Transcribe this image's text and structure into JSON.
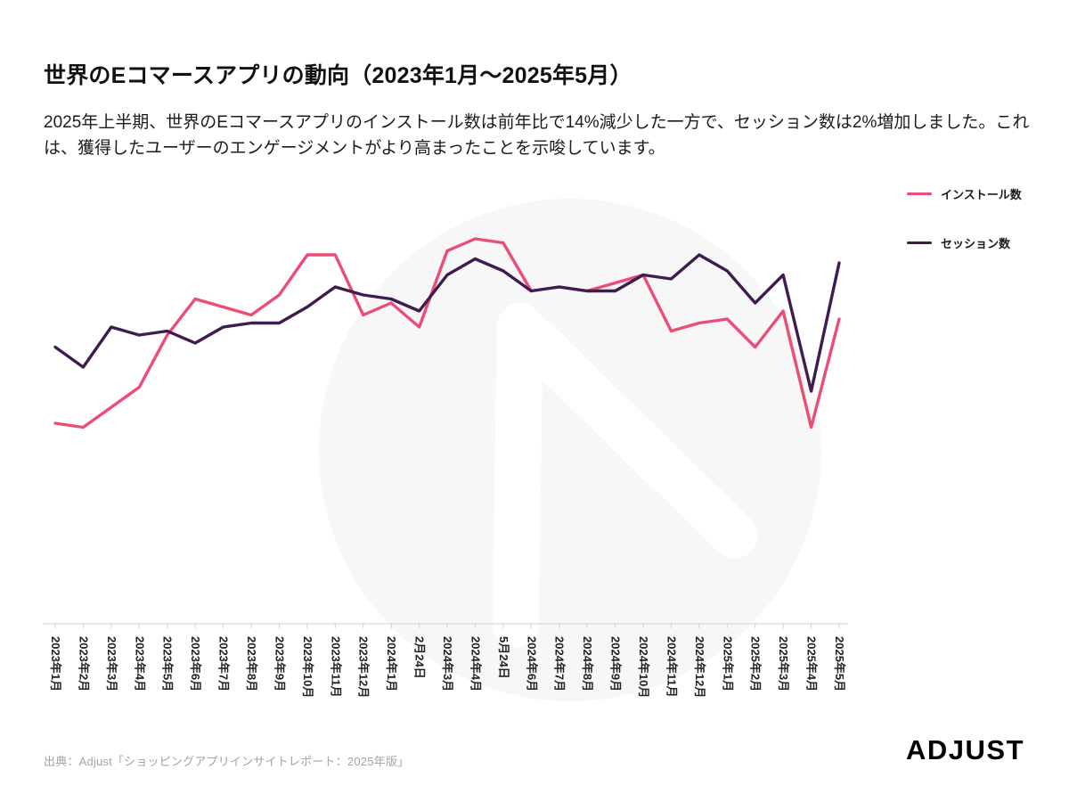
{
  "page": {
    "title": "世界のEコマースアプリの動向（2023年1月〜2025年5月）",
    "description": "2025年上半期、世界のEコマースアプリのインストール数は前年比で14%減少した一方で、セッション数は2%増加しました。これは、獲得したユーザーのエンゲージメントがより高まったことを示唆しています。",
    "source": "出典：Adjust「ショッピングアプリインサイトレポート：2025年版」",
    "brand_name": "ADJUST"
  },
  "colors": {
    "installs": "#ec4d77",
    "sessions": "#3f1c50",
    "axis": "#cfcfcf",
    "tick_label": "#222222",
    "watermark": "#f7f7f7"
  },
  "chart_data": {
    "type": "line",
    "title": "世界のEコマースアプリの動向（2023年1月〜2025年5月）",
    "xlabel": "",
    "ylabel": "",
    "ylim": [
      0,
      100
    ],
    "y_axis_visible": false,
    "grid": false,
    "legend_position": "top-right",
    "categories": [
      "2023年1月",
      "2023年2月",
      "2023年3月",
      "2023年4月",
      "2023年5月",
      "2023年6月",
      "2023年7月",
      "2023年8月",
      "2023年9月",
      "2023年10月",
      "2023年11月",
      "2023年12月",
      "2024年1月",
      "2月24日",
      "2024年3月",
      "2024年4月",
      "5月24日",
      "2024年6月",
      "2024年7月",
      "2024年8月",
      "2024年9月",
      "2024年10月",
      "2024年11月",
      "2024年12月",
      "2025年1月",
      "2025年2月",
      "2025年3月",
      "2025年4月",
      "2025年5月"
    ],
    "series": [
      {
        "name": "インストール数",
        "color_key": "installs",
        "values": [
          50,
          49,
          54,
          59,
          72,
          81,
          79,
          77,
          82,
          92,
          92,
          77,
          80,
          74,
          93,
          96,
          95,
          83,
          84,
          83,
          85,
          87,
          73,
          75,
          76,
          69,
          78,
          49,
          76
        ]
      },
      {
        "name": "セッション数",
        "color_key": "sessions",
        "values": [
          69,
          64,
          74,
          72,
          73,
          70,
          74,
          75,
          75,
          79,
          84,
          82,
          81,
          78,
          87,
          91,
          88,
          83,
          84,
          83,
          83,
          87,
          86,
          92,
          88,
          80,
          87,
          58,
          90
        ]
      }
    ]
  }
}
